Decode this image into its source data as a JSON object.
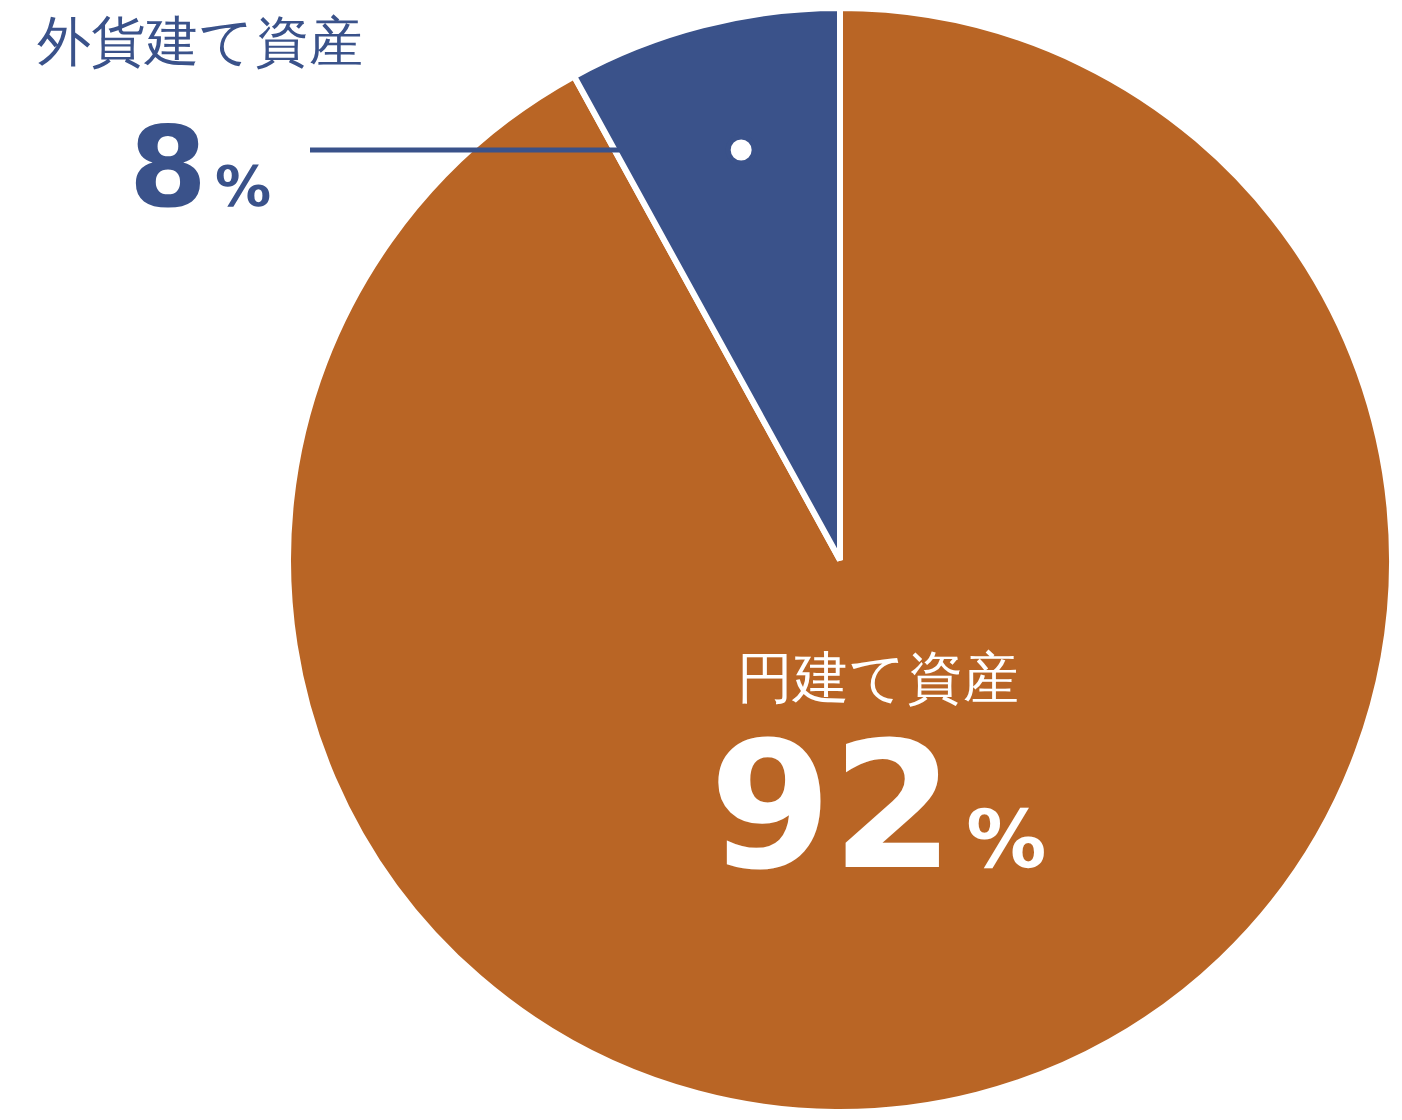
{
  "chart_data": {
    "type": "pie",
    "categories": [
      "円建て資産",
      "外貨建て資産"
    ],
    "values": [
      92,
      8
    ],
    "colors": [
      "#b96525",
      "#3a528a"
    ],
    "value_labels": [
      "92%",
      "8%"
    ]
  }
}
